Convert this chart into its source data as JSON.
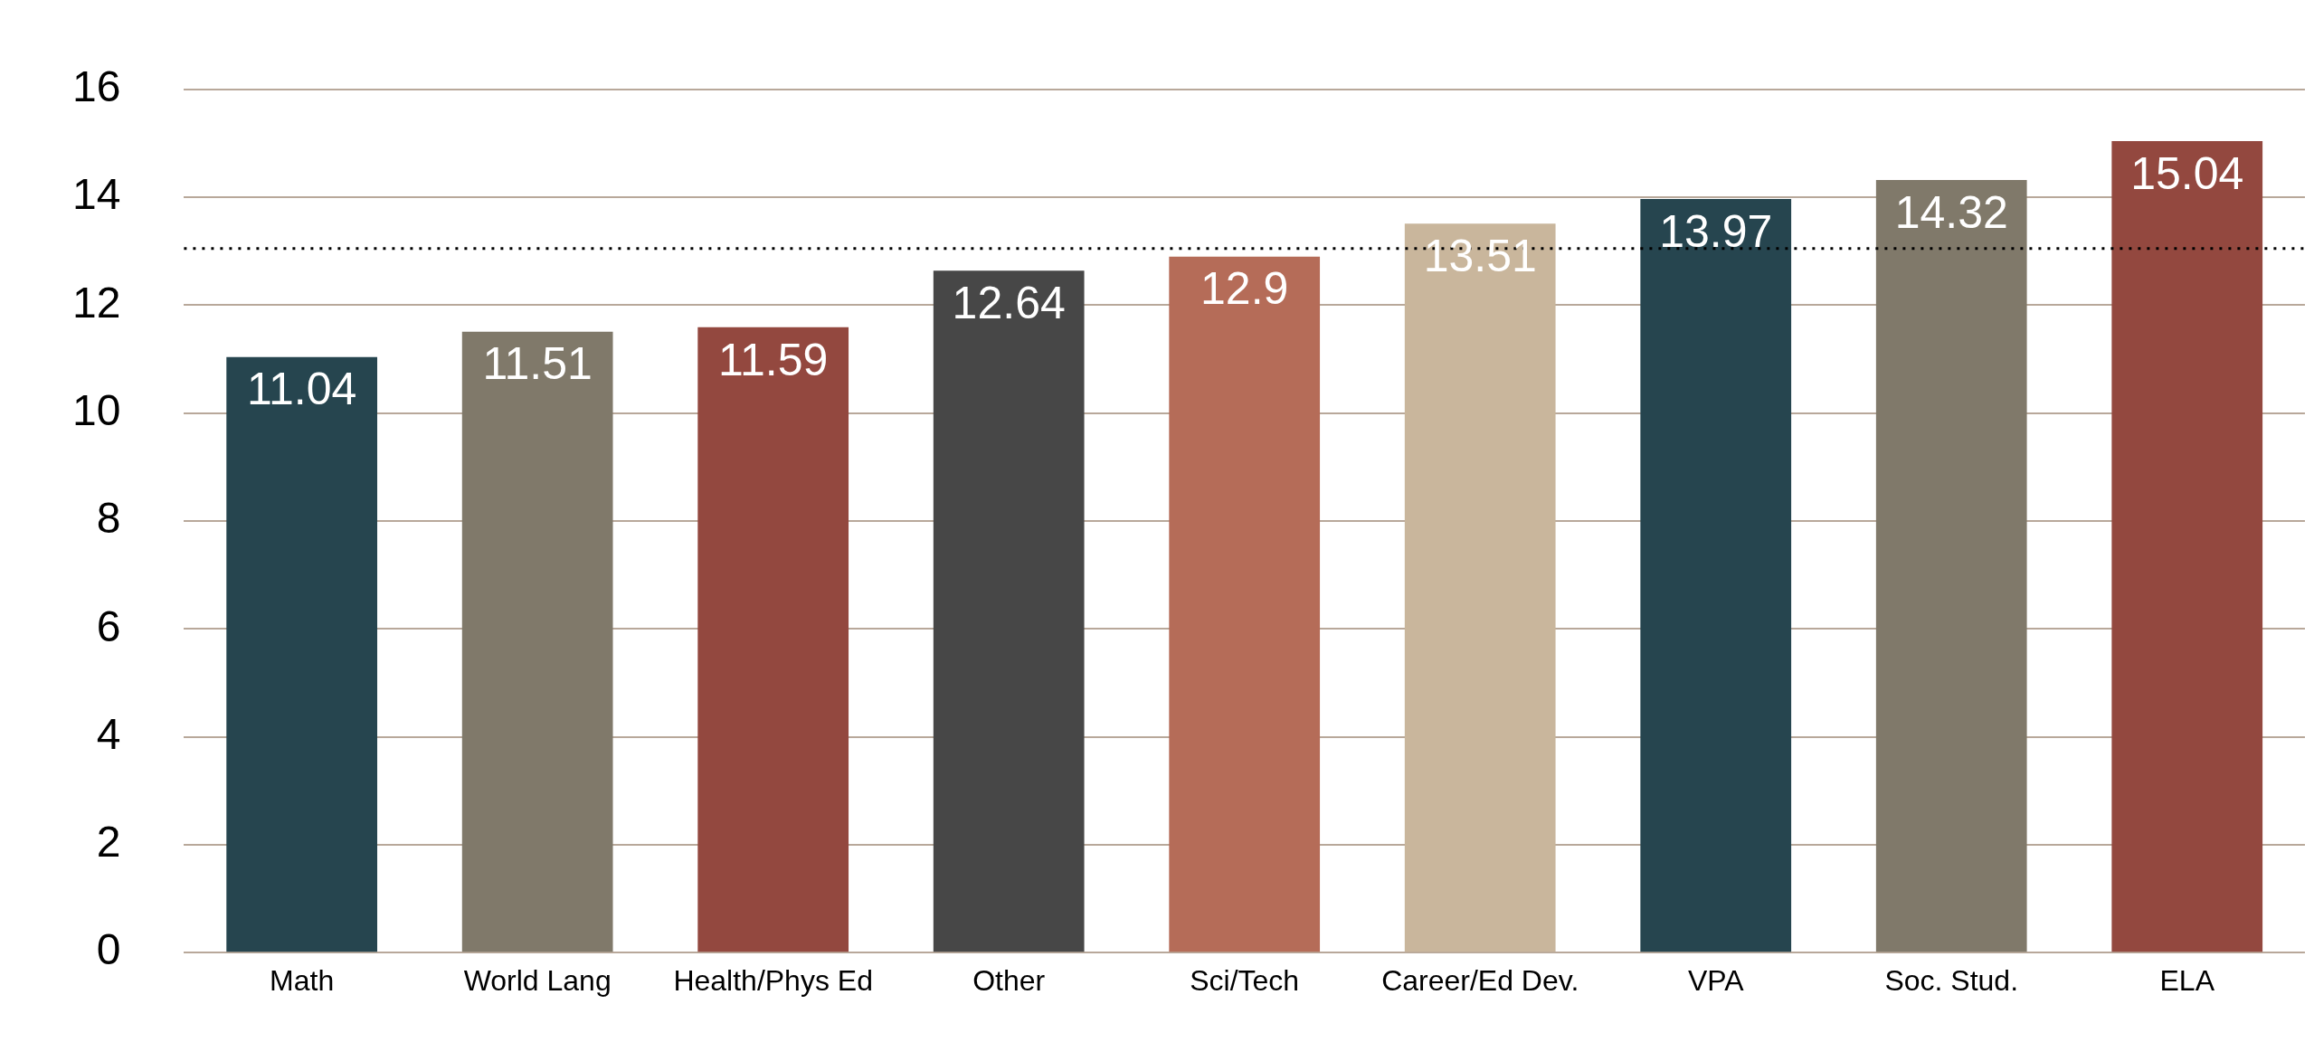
{
  "chart_data": {
    "type": "bar",
    "categories": [
      "Math",
      "World Lang",
      "Health/Phys Ed",
      "Other",
      "Sci/Tech",
      "Career/Ed Dev.",
      "VPA",
      "Soc. Stud.",
      "ELA"
    ],
    "values": [
      11.04,
      11.51,
      11.59,
      12.64,
      12.9,
      13.51,
      13.97,
      14.32,
      15.04
    ],
    "colors": [
      "#26454f",
      "#80796a",
      "#93483f",
      "#474747",
      "#b56c58",
      "#c9b69c",
      "#26454f",
      "#80796a",
      "#93483f"
    ],
    "ylim": [
      0,
      16
    ],
    "yticks": [
      0,
      2,
      4,
      6,
      8,
      10,
      12,
      14,
      16
    ],
    "grid": "y",
    "legend": false,
    "data_labels": true,
    "ref_lines": [
      {
        "axis": "y",
        "value": 13.05,
        "color": "#000000",
        "line_style": "dotted"
      }
    ]
  }
}
